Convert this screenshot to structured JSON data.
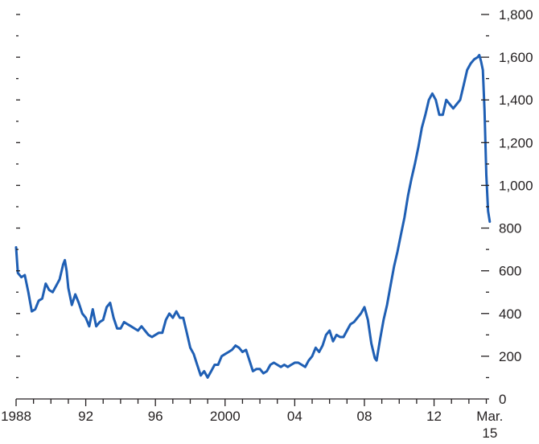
{
  "colors": {
    "series": "#1f5fb4",
    "axis": "#231f20",
    "background": "#ffffff"
  },
  "chart_data": {
    "type": "line",
    "title": "",
    "xlabel": "",
    "ylabel": "",
    "grid": false,
    "legend": "none",
    "xlim": [
      1988,
      2015.3
    ],
    "ylim": [
      0,
      1800
    ],
    "y_axis_side": "right",
    "x_tick_labels": [
      {
        "x": 1988,
        "label": "1988"
      },
      {
        "x": 1992,
        "label": "92"
      },
      {
        "x": 1996,
        "label": "96"
      },
      {
        "x": 2000,
        "label": "2000"
      },
      {
        "x": 2004,
        "label": "04"
      },
      {
        "x": 2008,
        "label": "08"
      },
      {
        "x": 2012,
        "label": "12"
      },
      {
        "x": 2015.2,
        "label": "Mar.",
        "label2": "15"
      }
    ],
    "y_tick_labels": [
      {
        "y": 0,
        "label": "0"
      },
      {
        "y": 200,
        "label": "200"
      },
      {
        "y": 400,
        "label": "400"
      },
      {
        "y": 600,
        "label": "600"
      },
      {
        "y": 800,
        "label": "800"
      },
      {
        "y": 1000,
        "label": "1,000"
      },
      {
        "y": 1200,
        "label": "1,200"
      },
      {
        "y": 1400,
        "label": "1,400"
      },
      {
        "y": 1600,
        "label": "1,600"
      },
      {
        "y": 1800,
        "label": "1,800"
      }
    ],
    "series": [
      {
        "values": [
          [
            1988.0,
            710
          ],
          [
            1988.1,
            590
          ],
          [
            1988.3,
            570
          ],
          [
            1988.5,
            580
          ],
          [
            1988.7,
            500
          ],
          [
            1988.9,
            410
          ],
          [
            1989.1,
            420
          ],
          [
            1989.3,
            460
          ],
          [
            1989.5,
            470
          ],
          [
            1989.7,
            540
          ],
          [
            1989.9,
            510
          ],
          [
            1990.1,
            500
          ],
          [
            1990.3,
            530
          ],
          [
            1990.5,
            560
          ],
          [
            1990.7,
            630
          ],
          [
            1990.8,
            650
          ],
          [
            1990.9,
            600
          ],
          [
            1991.0,
            520
          ],
          [
            1991.2,
            440
          ],
          [
            1991.4,
            490
          ],
          [
            1991.6,
            450
          ],
          [
            1991.8,
            400
          ],
          [
            1992.0,
            380
          ],
          [
            1992.2,
            340
          ],
          [
            1992.4,
            420
          ],
          [
            1992.6,
            340
          ],
          [
            1992.8,
            360
          ],
          [
            1993.0,
            370
          ],
          [
            1993.2,
            430
          ],
          [
            1993.4,
            450
          ],
          [
            1993.6,
            380
          ],
          [
            1993.8,
            330
          ],
          [
            1994.0,
            330
          ],
          [
            1994.2,
            360
          ],
          [
            1994.4,
            350
          ],
          [
            1994.6,
            340
          ],
          [
            1994.8,
            330
          ],
          [
            1995.0,
            320
          ],
          [
            1995.2,
            340
          ],
          [
            1995.4,
            320
          ],
          [
            1995.6,
            300
          ],
          [
            1995.8,
            290
          ],
          [
            1996.0,
            300
          ],
          [
            1996.2,
            310
          ],
          [
            1996.4,
            310
          ],
          [
            1996.6,
            370
          ],
          [
            1996.8,
            400
          ],
          [
            1997.0,
            380
          ],
          [
            1997.2,
            410
          ],
          [
            1997.4,
            380
          ],
          [
            1997.6,
            380
          ],
          [
            1997.8,
            310
          ],
          [
            1998.0,
            240
          ],
          [
            1998.2,
            210
          ],
          [
            1998.4,
            160
          ],
          [
            1998.6,
            110
          ],
          [
            1998.8,
            130
          ],
          [
            1999.0,
            100
          ],
          [
            1999.2,
            130
          ],
          [
            1999.4,
            160
          ],
          [
            1999.6,
            160
          ],
          [
            1999.8,
            200
          ],
          [
            2000.0,
            210
          ],
          [
            2000.2,
            220
          ],
          [
            2000.4,
            230
          ],
          [
            2000.6,
            250
          ],
          [
            2000.8,
            240
          ],
          [
            2001.0,
            220
          ],
          [
            2001.2,
            230
          ],
          [
            2001.4,
            180
          ],
          [
            2001.6,
            130
          ],
          [
            2001.8,
            140
          ],
          [
            2002.0,
            140
          ],
          [
            2002.2,
            120
          ],
          [
            2002.4,
            130
          ],
          [
            2002.6,
            160
          ],
          [
            2002.8,
            170
          ],
          [
            2003.0,
            160
          ],
          [
            2003.2,
            150
          ],
          [
            2003.4,
            160
          ],
          [
            2003.6,
            150
          ],
          [
            2003.8,
            160
          ],
          [
            2004.0,
            170
          ],
          [
            2004.2,
            170
          ],
          [
            2004.4,
            160
          ],
          [
            2004.6,
            150
          ],
          [
            2004.8,
            180
          ],
          [
            2005.0,
            200
          ],
          [
            2005.2,
            240
          ],
          [
            2005.4,
            220
          ],
          [
            2005.6,
            250
          ],
          [
            2005.8,
            300
          ],
          [
            2006.0,
            320
          ],
          [
            2006.2,
            270
          ],
          [
            2006.4,
            300
          ],
          [
            2006.6,
            290
          ],
          [
            2006.8,
            290
          ],
          [
            2007.0,
            320
          ],
          [
            2007.2,
            350
          ],
          [
            2007.4,
            360
          ],
          [
            2007.6,
            380
          ],
          [
            2007.8,
            400
          ],
          [
            2008.0,
            430
          ],
          [
            2008.2,
            370
          ],
          [
            2008.4,
            260
          ],
          [
            2008.6,
            190
          ],
          [
            2008.7,
            180
          ],
          [
            2008.9,
            280
          ],
          [
            2009.1,
            370
          ],
          [
            2009.3,
            440
          ],
          [
            2009.5,
            530
          ],
          [
            2009.7,
            620
          ],
          [
            2009.9,
            690
          ],
          [
            2010.1,
            770
          ],
          [
            2010.3,
            850
          ],
          [
            2010.5,
            950
          ],
          [
            2010.7,
            1030
          ],
          [
            2010.9,
            1100
          ],
          [
            2011.1,
            1180
          ],
          [
            2011.3,
            1270
          ],
          [
            2011.5,
            1330
          ],
          [
            2011.7,
            1400
          ],
          [
            2011.9,
            1430
          ],
          [
            2012.1,
            1400
          ],
          [
            2012.3,
            1330
          ],
          [
            2012.5,
            1330
          ],
          [
            2012.7,
            1400
          ],
          [
            2012.9,
            1380
          ],
          [
            2013.1,
            1360
          ],
          [
            2013.3,
            1380
          ],
          [
            2013.5,
            1400
          ],
          [
            2013.7,
            1470
          ],
          [
            2013.9,
            1540
          ],
          [
            2014.1,
            1570
          ],
          [
            2014.3,
            1590
          ],
          [
            2014.5,
            1600
          ],
          [
            2014.6,
            1610
          ],
          [
            2014.7,
            1580
          ],
          [
            2014.8,
            1540
          ],
          [
            2014.9,
            1350
          ],
          [
            2015.0,
            1050
          ],
          [
            2015.1,
            880
          ],
          [
            2015.2,
            830
          ]
        ]
      }
    ]
  }
}
